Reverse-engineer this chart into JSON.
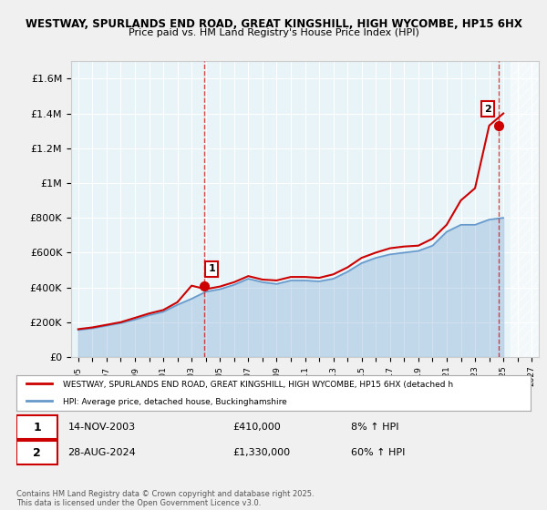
{
  "title1": "WESTWAY, SPURLANDS END ROAD, GREAT KINGSHILL, HIGH WYCOMBE, HP15 6HX",
  "title2": "Price paid vs. HM Land Registry's House Price Index (HPI)",
  "ylabel_ticks": [
    "£0",
    "£200K",
    "£400K",
    "£600K",
    "£800K",
    "£1M",
    "£1.2M",
    "£1.4M",
    "£1.6M"
  ],
  "ytick_vals": [
    0,
    200000,
    400000,
    600000,
    800000,
    1000000,
    1200000,
    1400000,
    1600000
  ],
  "ylim": [
    0,
    1700000
  ],
  "xlim_start": 1994.5,
  "xlim_end": 2027.5,
  "sale1_year": 2003.87,
  "sale1_price": 410000,
  "sale1_label": "1",
  "sale2_year": 2024.66,
  "sale2_price": 1330000,
  "sale2_label": "2",
  "legend_line1": "WESTWAY, SPURLANDS END ROAD, GREAT KINGSHILL, HIGH WYCOMBE, HP15 6HX (detached h",
  "legend_line2": "HPI: Average price, detached house, Buckinghamshire",
  "annotation1": "1    14-NOV-2003         £410,000          8% ↑ HPI",
  "annotation2": "2    28-AUG-2024         £1,330,000        60% ↑ HPI",
  "footer": "Contains HM Land Registry data © Crown copyright and database right 2025.\nThis data is licensed under the Open Government Licence v3.0.",
  "line_color_red": "#cc0000",
  "line_color_blue": "#6699cc",
  "bg_color": "#e8f4f8",
  "plot_bg": "#ffffff",
  "hatch_color": "#dddddd"
}
